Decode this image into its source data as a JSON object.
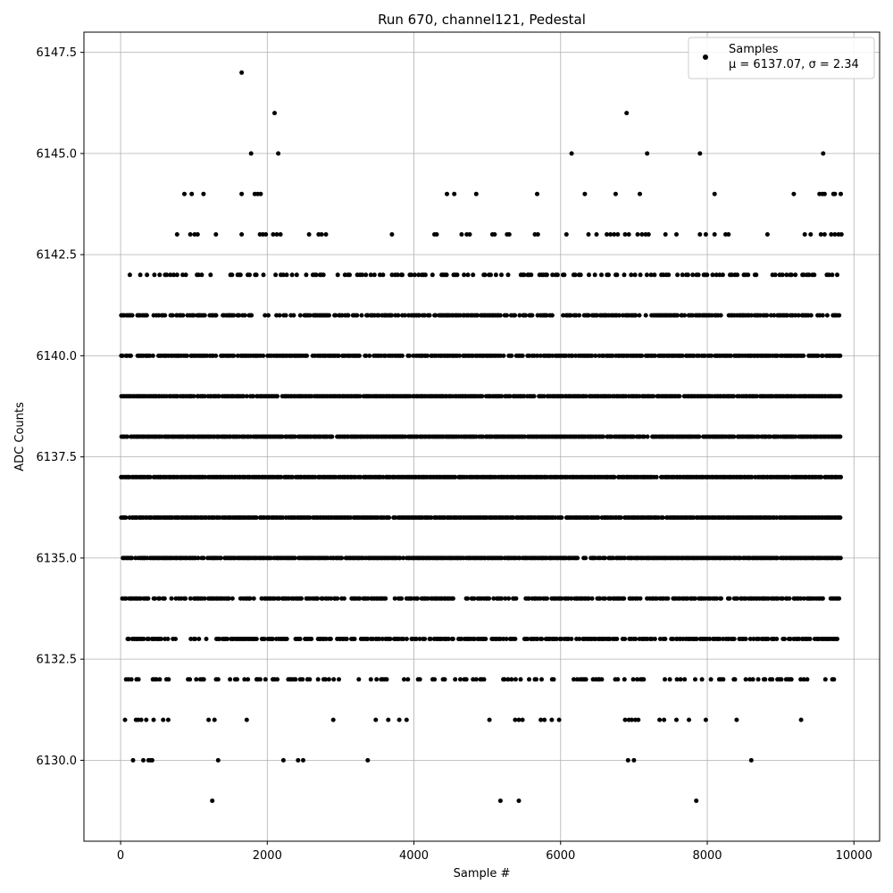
{
  "chart_data": {
    "type": "scatter",
    "title": "Run 670, channel121, Pedestal",
    "xlabel": "Sample #",
    "ylabel": "ADC Counts",
    "xlim": [
      -500,
      10350
    ],
    "ylim": [
      6128.0,
      6148.0
    ],
    "xticks": [
      0,
      2000,
      4000,
      6000,
      8000,
      10000
    ],
    "xtick_labels": [
      "0",
      "2000",
      "4000",
      "6000",
      "8000",
      "10000"
    ],
    "yticks": [
      6130.0,
      6132.5,
      6135.0,
      6137.5,
      6140.0,
      6142.5,
      6145.0,
      6147.5
    ],
    "ytick_labels": [
      "6130.0",
      "6132.5",
      "6135.0",
      "6137.5",
      "6140.0",
      "6142.5",
      "6145.0",
      "6147.5"
    ],
    "grid": true,
    "marker_color": "#000000",
    "legend": {
      "placement": "top-right",
      "series_label": "Samples",
      "stats_text": "μ = 6137.07, σ = 2.34"
    },
    "sample_range": [
      0,
      9830
    ],
    "dense_levels": [
      6133,
      6134,
      6135,
      6136,
      6137,
      6138,
      6139,
      6140,
      6141
    ],
    "sparse_levels": [
      6132,
      6142
    ],
    "series": [
      {
        "name": "Samples",
        "points": [
          [
            1650,
            6147
          ],
          [
            2100,
            6146
          ],
          [
            6900,
            6146
          ],
          [
            1780,
            6145
          ],
          [
            2150,
            6145
          ],
          [
            6150,
            6145
          ],
          [
            7180,
            6145
          ],
          [
            7900,
            6145
          ],
          [
            9580,
            6145
          ],
          [
            870,
            6144
          ],
          [
            970,
            6144
          ],
          [
            1130,
            6144
          ],
          [
            1650,
            6144
          ],
          [
            1830,
            6144
          ],
          [
            1870,
            6144
          ],
          [
            1910,
            6144
          ],
          [
            4450,
            6144
          ],
          [
            4550,
            6144
          ],
          [
            4850,
            6144
          ],
          [
            5680,
            6144
          ],
          [
            6330,
            6144
          ],
          [
            6750,
            6144
          ],
          [
            7080,
            6144
          ],
          [
            8100,
            6144
          ],
          [
            9180,
            6144
          ],
          [
            9530,
            6144
          ],
          [
            9570,
            6144
          ],
          [
            9600,
            6144
          ],
          [
            9720,
            6144
          ],
          [
            9740,
            6144
          ],
          [
            9820,
            6144
          ],
          [
            770,
            6143
          ],
          [
            950,
            6143
          ],
          [
            1010,
            6143
          ],
          [
            1050,
            6143
          ],
          [
            1300,
            6143
          ],
          [
            1650,
            6143
          ],
          [
            1900,
            6143
          ],
          [
            1940,
            6143
          ],
          [
            1980,
            6143
          ],
          [
            2080,
            6143
          ],
          [
            2130,
            6143
          ],
          [
            2180,
            6143
          ],
          [
            2570,
            6143
          ],
          [
            2700,
            6143
          ],
          [
            2740,
            6143
          ],
          [
            2800,
            6143
          ],
          [
            3700,
            6143
          ],
          [
            4280,
            6143
          ],
          [
            4310,
            6143
          ],
          [
            4650,
            6143
          ],
          [
            4720,
            6143
          ],
          [
            4760,
            6143
          ],
          [
            5070,
            6143
          ],
          [
            5100,
            6143
          ],
          [
            5270,
            6143
          ],
          [
            5300,
            6143
          ],
          [
            5650,
            6143
          ],
          [
            5690,
            6143
          ],
          [
            6080,
            6143
          ],
          [
            6380,
            6143
          ],
          [
            6490,
            6143
          ],
          [
            6630,
            6143
          ],
          [
            6680,
            6143
          ],
          [
            6730,
            6143
          ],
          [
            6780,
            6143
          ],
          [
            6880,
            6143
          ],
          [
            6930,
            6143
          ],
          [
            7050,
            6143
          ],
          [
            7110,
            6143
          ],
          [
            7160,
            6143
          ],
          [
            7200,
            6143
          ],
          [
            7430,
            6143
          ],
          [
            7580,
            6143
          ],
          [
            7900,
            6143
          ],
          [
            7980,
            6143
          ],
          [
            8100,
            6143
          ],
          [
            8250,
            6143
          ],
          [
            8290,
            6143
          ],
          [
            8820,
            6143
          ],
          [
            9330,
            6143
          ],
          [
            9410,
            6143
          ],
          [
            9550,
            6143
          ],
          [
            9600,
            6143
          ],
          [
            9690,
            6143
          ],
          [
            9740,
            6143
          ],
          [
            9790,
            6143
          ],
          [
            9830,
            6143
          ],
          [
            170,
            6130
          ],
          [
            310,
            6130
          ],
          [
            380,
            6130
          ],
          [
            410,
            6130
          ],
          [
            430,
            6130
          ],
          [
            1330,
            6130
          ],
          [
            2220,
            6130
          ],
          [
            2420,
            6130
          ],
          [
            2490,
            6130
          ],
          [
            3370,
            6130
          ],
          [
            6920,
            6130
          ],
          [
            7000,
            6130
          ],
          [
            8600,
            6130
          ],
          [
            1250,
            6129
          ],
          [
            5180,
            6129
          ],
          [
            5430,
            6129
          ],
          [
            7850,
            6129
          ],
          [
            60,
            6131
          ],
          [
            210,
            6131
          ],
          [
            240,
            6131
          ],
          [
            280,
            6131
          ],
          [
            350,
            6131
          ],
          [
            450,
            6131
          ],
          [
            580,
            6131
          ],
          [
            650,
            6131
          ],
          [
            1200,
            6131
          ],
          [
            1280,
            6131
          ],
          [
            1720,
            6131
          ],
          [
            2900,
            6131
          ],
          [
            3480,
            6131
          ],
          [
            3650,
            6131
          ],
          [
            3800,
            6131
          ],
          [
            3900,
            6131
          ],
          [
            5030,
            6131
          ],
          [
            5380,
            6131
          ],
          [
            5430,
            6131
          ],
          [
            5480,
            6131
          ],
          [
            5730,
            6131
          ],
          [
            5780,
            6131
          ],
          [
            5880,
            6131
          ],
          [
            5980,
            6131
          ],
          [
            6880,
            6131
          ],
          [
            6930,
            6131
          ],
          [
            6970,
            6131
          ],
          [
            7020,
            6131
          ],
          [
            7060,
            6131
          ],
          [
            7350,
            6131
          ],
          [
            7410,
            6131
          ],
          [
            7580,
            6131
          ],
          [
            7750,
            6131
          ],
          [
            7980,
            6131
          ],
          [
            8400,
            6131
          ],
          [
            9280,
            6131
          ]
        ]
      }
    ]
  }
}
